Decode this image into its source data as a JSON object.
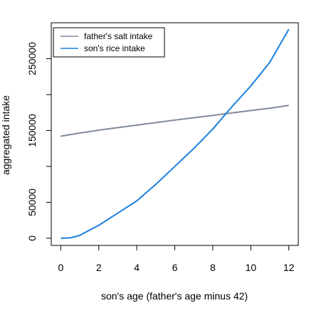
{
  "chart_data": {
    "type": "line",
    "xlabel": "son's age (father's age minus 42)",
    "ylabel": "aggregated intake",
    "xlim": [
      -0.5,
      12.5
    ],
    "ylim": [
      -10000,
      300000
    ],
    "x_ticks": [
      0,
      2,
      4,
      6,
      8,
      10,
      12
    ],
    "y_ticks": [
      0,
      50000,
      100000,
      150000,
      200000,
      250000
    ],
    "y_tick_labels": [
      "0",
      "50000",
      "",
      "150000",
      "",
      "250000"
    ],
    "grid": false,
    "legend_position": "top-left",
    "series": [
      {
        "name": "father's salt intake",
        "color": "#808a9a",
        "x": [
          0,
          1,
          2,
          3,
          4,
          5,
          6,
          7,
          8,
          9,
          10,
          11,
          12
        ],
        "y": [
          142000,
          146500,
          150500,
          154000,
          157500,
          161000,
          164500,
          167800,
          171000,
          174500,
          177800,
          181000,
          185000
        ]
      },
      {
        "name": "son's rice intake",
        "color": "#1c7fe0",
        "x": [
          0,
          0.5,
          1,
          1.5,
          2,
          3,
          4,
          5,
          6,
          7,
          8,
          9,
          10,
          11,
          12
        ],
        "y": [
          0,
          500,
          4000,
          11000,
          18000,
          35000,
          52000,
          75000,
          100000,
          125000,
          152000,
          183000,
          212000,
          245000,
          291000
        ]
      }
    ]
  }
}
